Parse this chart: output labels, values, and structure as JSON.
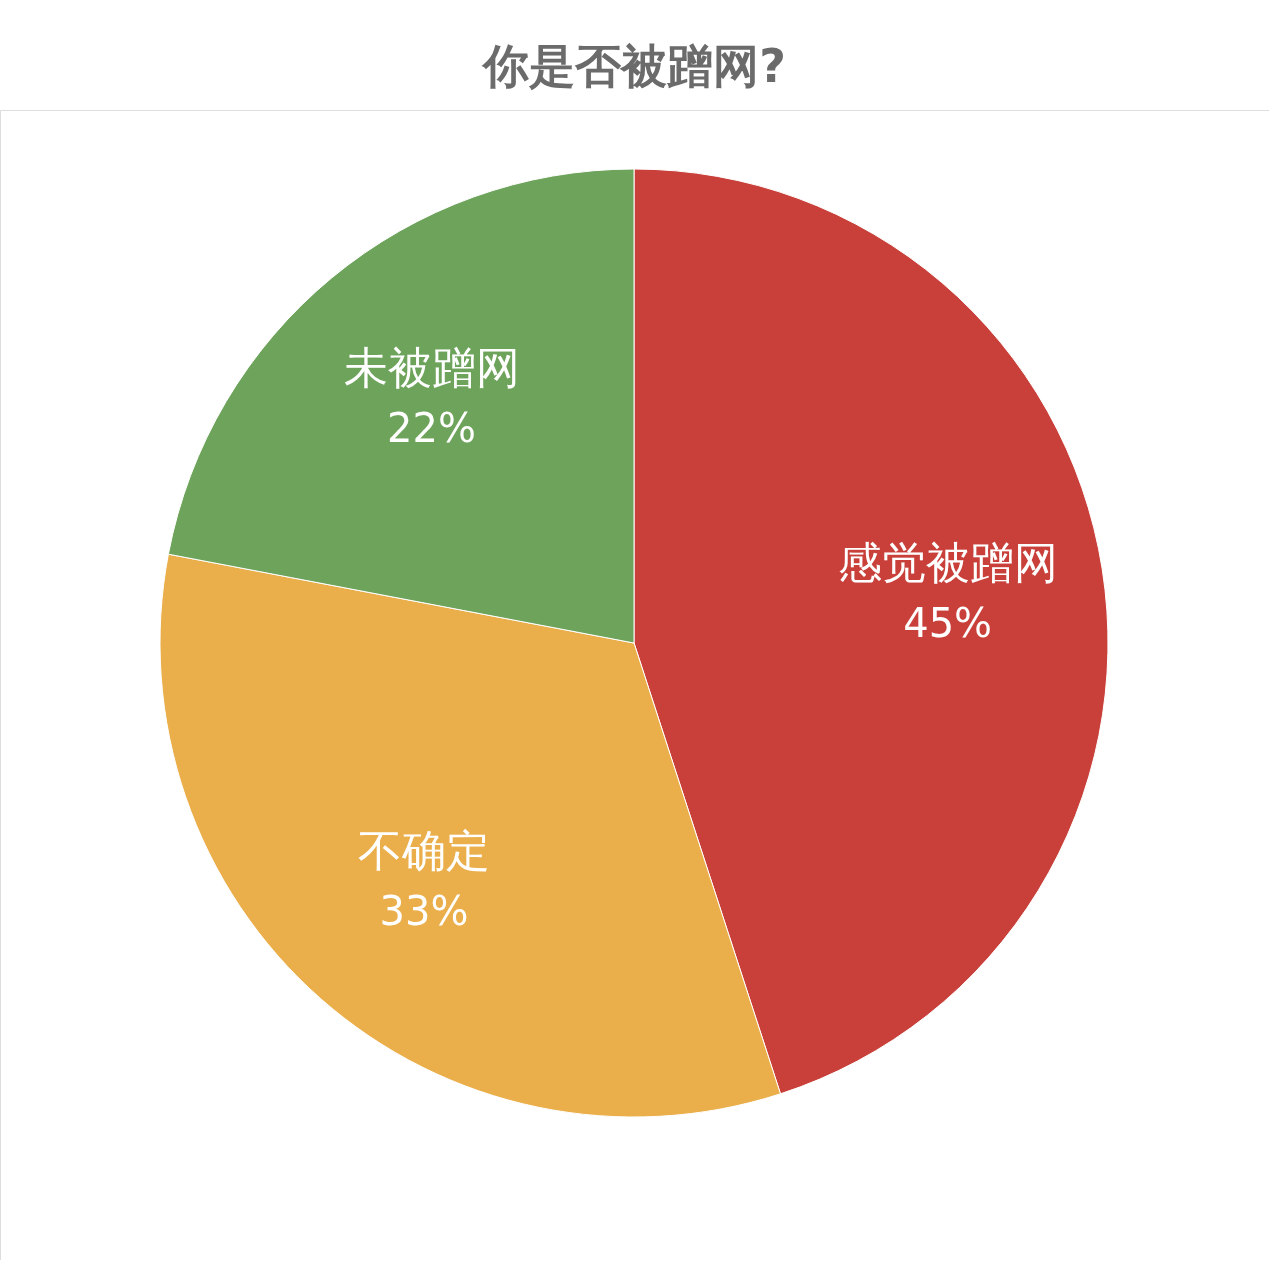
{
  "chart_data": {
    "type": "pie",
    "title": "你是否被蹭网?",
    "categories": [
      "感觉被蹭网",
      "不确定",
      "未被蹭网"
    ],
    "values": [
      45,
      33,
      22
    ],
    "value_labels": [
      "45%",
      "33%",
      "22%"
    ],
    "colors": [
      "#c9403b",
      "#eaae4a",
      "#6da35a"
    ],
    "legend": false
  }
}
